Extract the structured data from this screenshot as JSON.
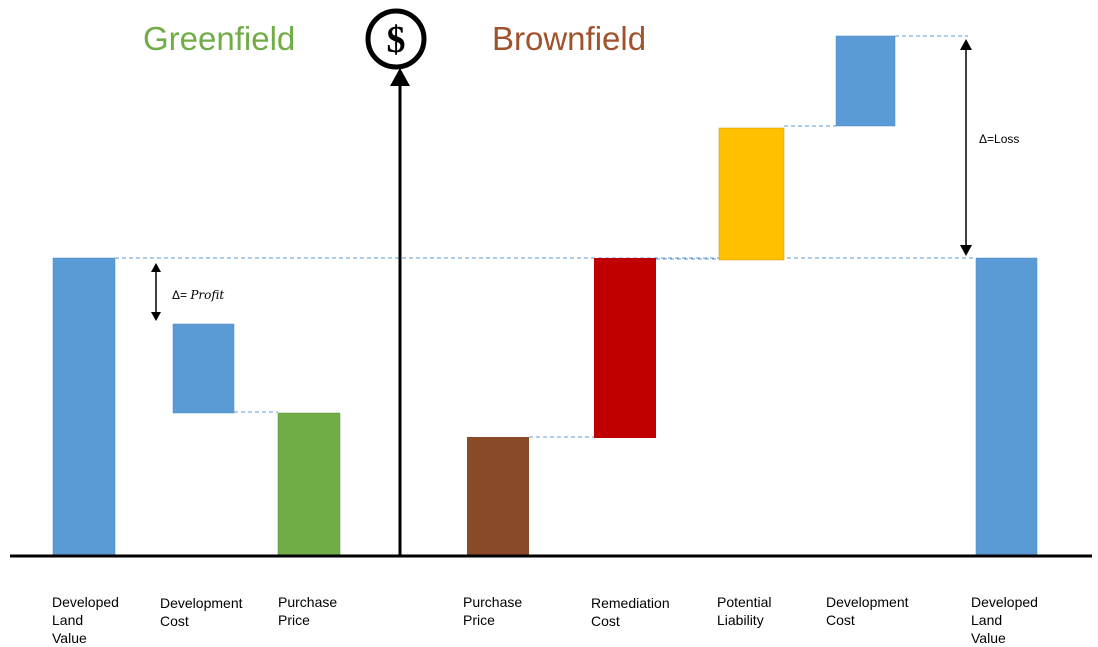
{
  "headings": {
    "greenfield": "Greenfield",
    "brownfield": "Brownfield",
    "dollar_symbol": "$"
  },
  "annotations": {
    "profit_prefix": "Δ= ",
    "profit_word": "Profit",
    "loss": "Δ=Loss"
  },
  "colors": {
    "blue": "#5B9BD5",
    "green": "#70AD47",
    "brown": "#8B4A27",
    "red": "#C00000",
    "yellow": "#FFC000",
    "greenfield_heading": "#70AD47",
    "brownfield_heading": "#A0522D",
    "dashed_line": "#5B9BD5"
  },
  "greenfield": {
    "items": [
      {
        "label_lines": [
          "Developed",
          "Land",
          "Value"
        ]
      },
      {
        "label_lines": [
          "Development",
          "Cost"
        ]
      },
      {
        "label_lines": [
          "Purchase",
          "Price"
        ]
      }
    ]
  },
  "brownfield": {
    "items": [
      {
        "label_lines": [
          "Purchase",
          "Price"
        ]
      },
      {
        "label_lines": [
          "Remediation",
          "Cost"
        ]
      },
      {
        "label_lines": [
          "Potential",
          "Liability"
        ]
      },
      {
        "label_lines": [
          "Development",
          "Cost"
        ]
      },
      {
        "label_lines": [
          "Developed",
          "Land",
          "Value"
        ]
      }
    ]
  }
}
